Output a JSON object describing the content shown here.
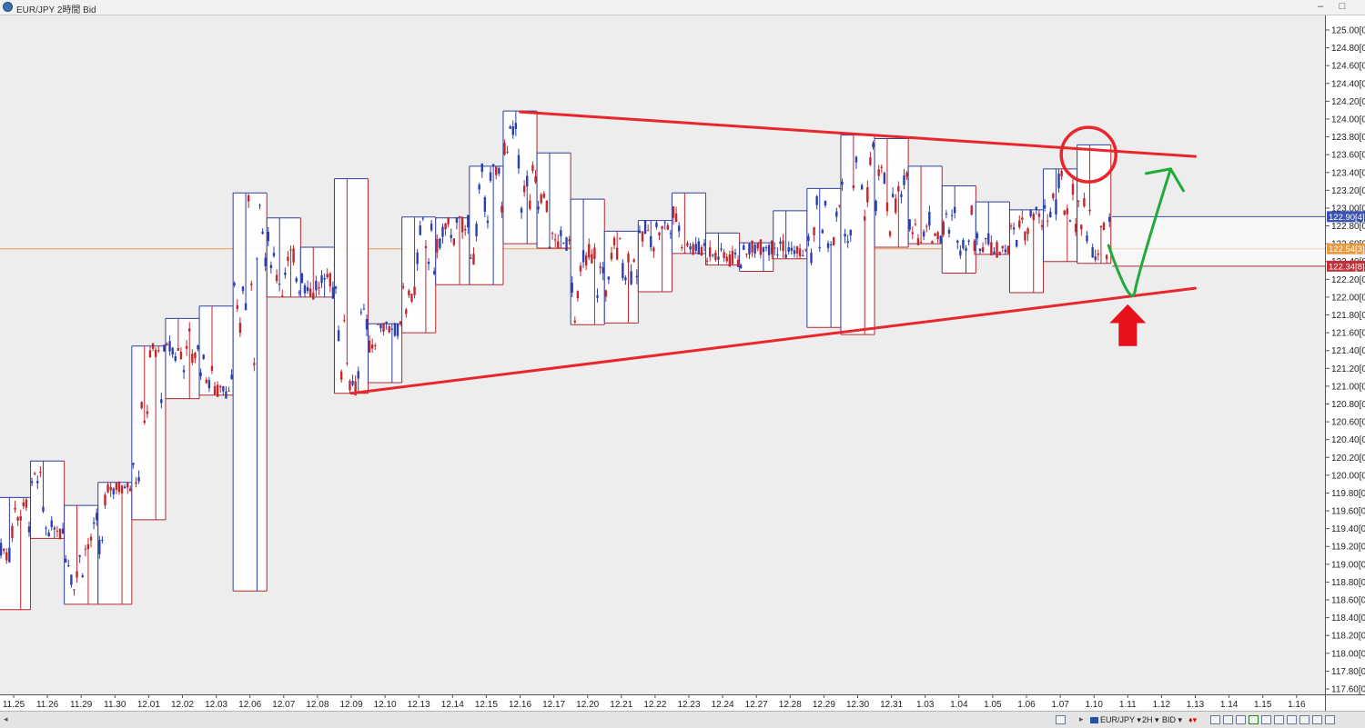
{
  "window": {
    "title": "EUR/JPY 2時間 Bid"
  },
  "chart_data": {
    "type": "candlestick",
    "ylim": [
      117.6,
      125.0
    ],
    "y_ticks": [
      "125.00[0",
      "124.80[0",
      "124.60[0",
      "124.40[0",
      "124.20[0",
      "124.00[0",
      "123.80[0",
      "123.60[0",
      "123.40[0",
      "123.20[0",
      "123.00[0",
      "122.80[0",
      "122.60[0",
      "122.40[0",
      "122.20[0",
      "122.00[0",
      "121.80[0",
      "121.60[0",
      "121.40[0",
      "121.20[0",
      "121.00[0",
      "120.80[0",
      "120.60[0",
      "120.40[0",
      "120.20[0",
      "120.00[0",
      "119.80[0",
      "119.60[0",
      "119.40[0",
      "119.20[0",
      "119.00[0",
      "118.80[0",
      "118.60[0",
      "118.40[0",
      "118.20[0",
      "118.00[0",
      "117.80[0",
      "117.60[0"
    ],
    "x_ticks": [
      "11.25",
      "11.26",
      "11.29",
      "11.30",
      "12.01",
      "12.02",
      "12.03",
      "12.06",
      "12.07",
      "12.08",
      "12.09",
      "12.10",
      "12.13",
      "12.14",
      "12.15",
      "12.16",
      "12.17",
      "12.20",
      "12.21",
      "12.22",
      "12.23",
      "12.24",
      "12.27",
      "12.28",
      "12.29",
      "12.30",
      "12.31",
      "1.03",
      "1.04",
      "1.05",
      "1.06",
      "1.07",
      "1.10",
      "1.11",
      "1.12",
      "1.13",
      "1.14",
      "1.15",
      "1.16"
    ],
    "price_labels": {
      "upper": "122.90[4]",
      "current": "122.54[3]",
      "lower": "122.34[8]"
    },
    "price_levels": {
      "upper": 122.904,
      "current": 122.543,
      "lower": 122.348
    },
    "daily_ranges": [
      {
        "d": "11.25",
        "high": 119.75,
        "low": 118.49
      },
      {
        "d": "11.26",
        "high": 120.16,
        "low": 119.29
      },
      {
        "d": "11.29",
        "high": 119.66,
        "low": 118.55
      },
      {
        "d": "11.30",
        "high": 119.92,
        "low": 118.55
      },
      {
        "d": "12.01",
        "high": 121.45,
        "low": 119.5
      },
      {
        "d": "12.02",
        "high": 121.76,
        "low": 120.86
      },
      {
        "d": "12.03",
        "high": 121.9,
        "low": 120.9
      },
      {
        "d": "12.06",
        "high": 123.17,
        "low": 118.7
      },
      {
        "d": "12.07",
        "high": 122.89,
        "low": 122.0
      },
      {
        "d": "12.08",
        "high": 122.56,
        "low": 122.0
      },
      {
        "d": "12.09",
        "high": 123.33,
        "low": 120.92
      },
      {
        "d": "12.10",
        "high": 121.7,
        "low": 121.04
      },
      {
        "d": "12.13",
        "high": 122.9,
        "low": 121.6
      },
      {
        "d": "12.14",
        "high": 122.89,
        "low": 122.14
      },
      {
        "d": "12.15",
        "high": 123.47,
        "low": 122.14
      },
      {
        "d": "12.16",
        "high": 124.09,
        "low": 122.6
      },
      {
        "d": "12.17",
        "high": 123.62,
        "low": 122.55
      },
      {
        "d": "12.20",
        "high": 123.1,
        "low": 121.69
      },
      {
        "d": "12.21",
        "high": 122.74,
        "low": 121.71
      },
      {
        "d": "12.22",
        "high": 122.86,
        "low": 122.06
      },
      {
        "d": "12.23",
        "high": 123.17,
        "low": 122.49
      },
      {
        "d": "12.24",
        "high": 122.72,
        "low": 122.36
      },
      {
        "d": "12.27",
        "high": 122.61,
        "low": 122.29
      },
      {
        "d": "12.28",
        "high": 122.97,
        "low": 122.43
      },
      {
        "d": "12.29",
        "high": 123.22,
        "low": 121.66
      },
      {
        "d": "12.30",
        "high": 123.82,
        "low": 121.58
      },
      {
        "d": "12.31",
        "high": 123.78,
        "low": 122.56
      },
      {
        "d": "1.03",
        "high": 123.47,
        "low": 122.6
      },
      {
        "d": "1.04",
        "high": 123.25,
        "low": 122.27
      },
      {
        "d": "1.05",
        "high": 123.07,
        "low": 122.48
      },
      {
        "d": "1.06",
        "high": 122.98,
        "low": 122.05
      },
      {
        "d": "1.07",
        "high": 123.44,
        "low": 122.4
      },
      {
        "d": "1.10",
        "high": 123.71,
        "low": 122.38
      }
    ],
    "trendlines": [
      {
        "name": "resistance",
        "color": "#e8262c",
        "from": {
          "d": "12.16",
          "y": 124.08
        },
        "to": {
          "d": "1.13",
          "y": 123.58
        }
      },
      {
        "name": "support",
        "color": "#e8262c",
        "from": {
          "d": "12.09",
          "y": 120.92
        },
        "to": {
          "d": "1.13",
          "y": 122.1
        }
      }
    ],
    "annotations": {
      "circle": {
        "d": "1.10",
        "y": 123.6,
        "color": "#e8262c"
      },
      "forecast_path": {
        "color": "#1faa3a",
        "points": [
          {
            "d": "1.10",
            "y": 122.58
          },
          {
            "d": "1.11",
            "y": 122.07
          },
          {
            "d": "1.12",
            "y": 123.44
          }
        ]
      },
      "up_arrow": {
        "d": "1.11",
        "y_top": 121.92,
        "y_bottom": 121.45,
        "color": "#e8101a"
      }
    },
    "colors": {
      "bull": "#2b3fae",
      "bear": "#c1272d",
      "box_up": "#2e3f9e",
      "box_down": "#b0282d",
      "current_line": "#e8a050"
    }
  },
  "statusbar": {
    "symbol": "EUR/JPY",
    "timeframe": "2H",
    "price_type": "BID"
  }
}
